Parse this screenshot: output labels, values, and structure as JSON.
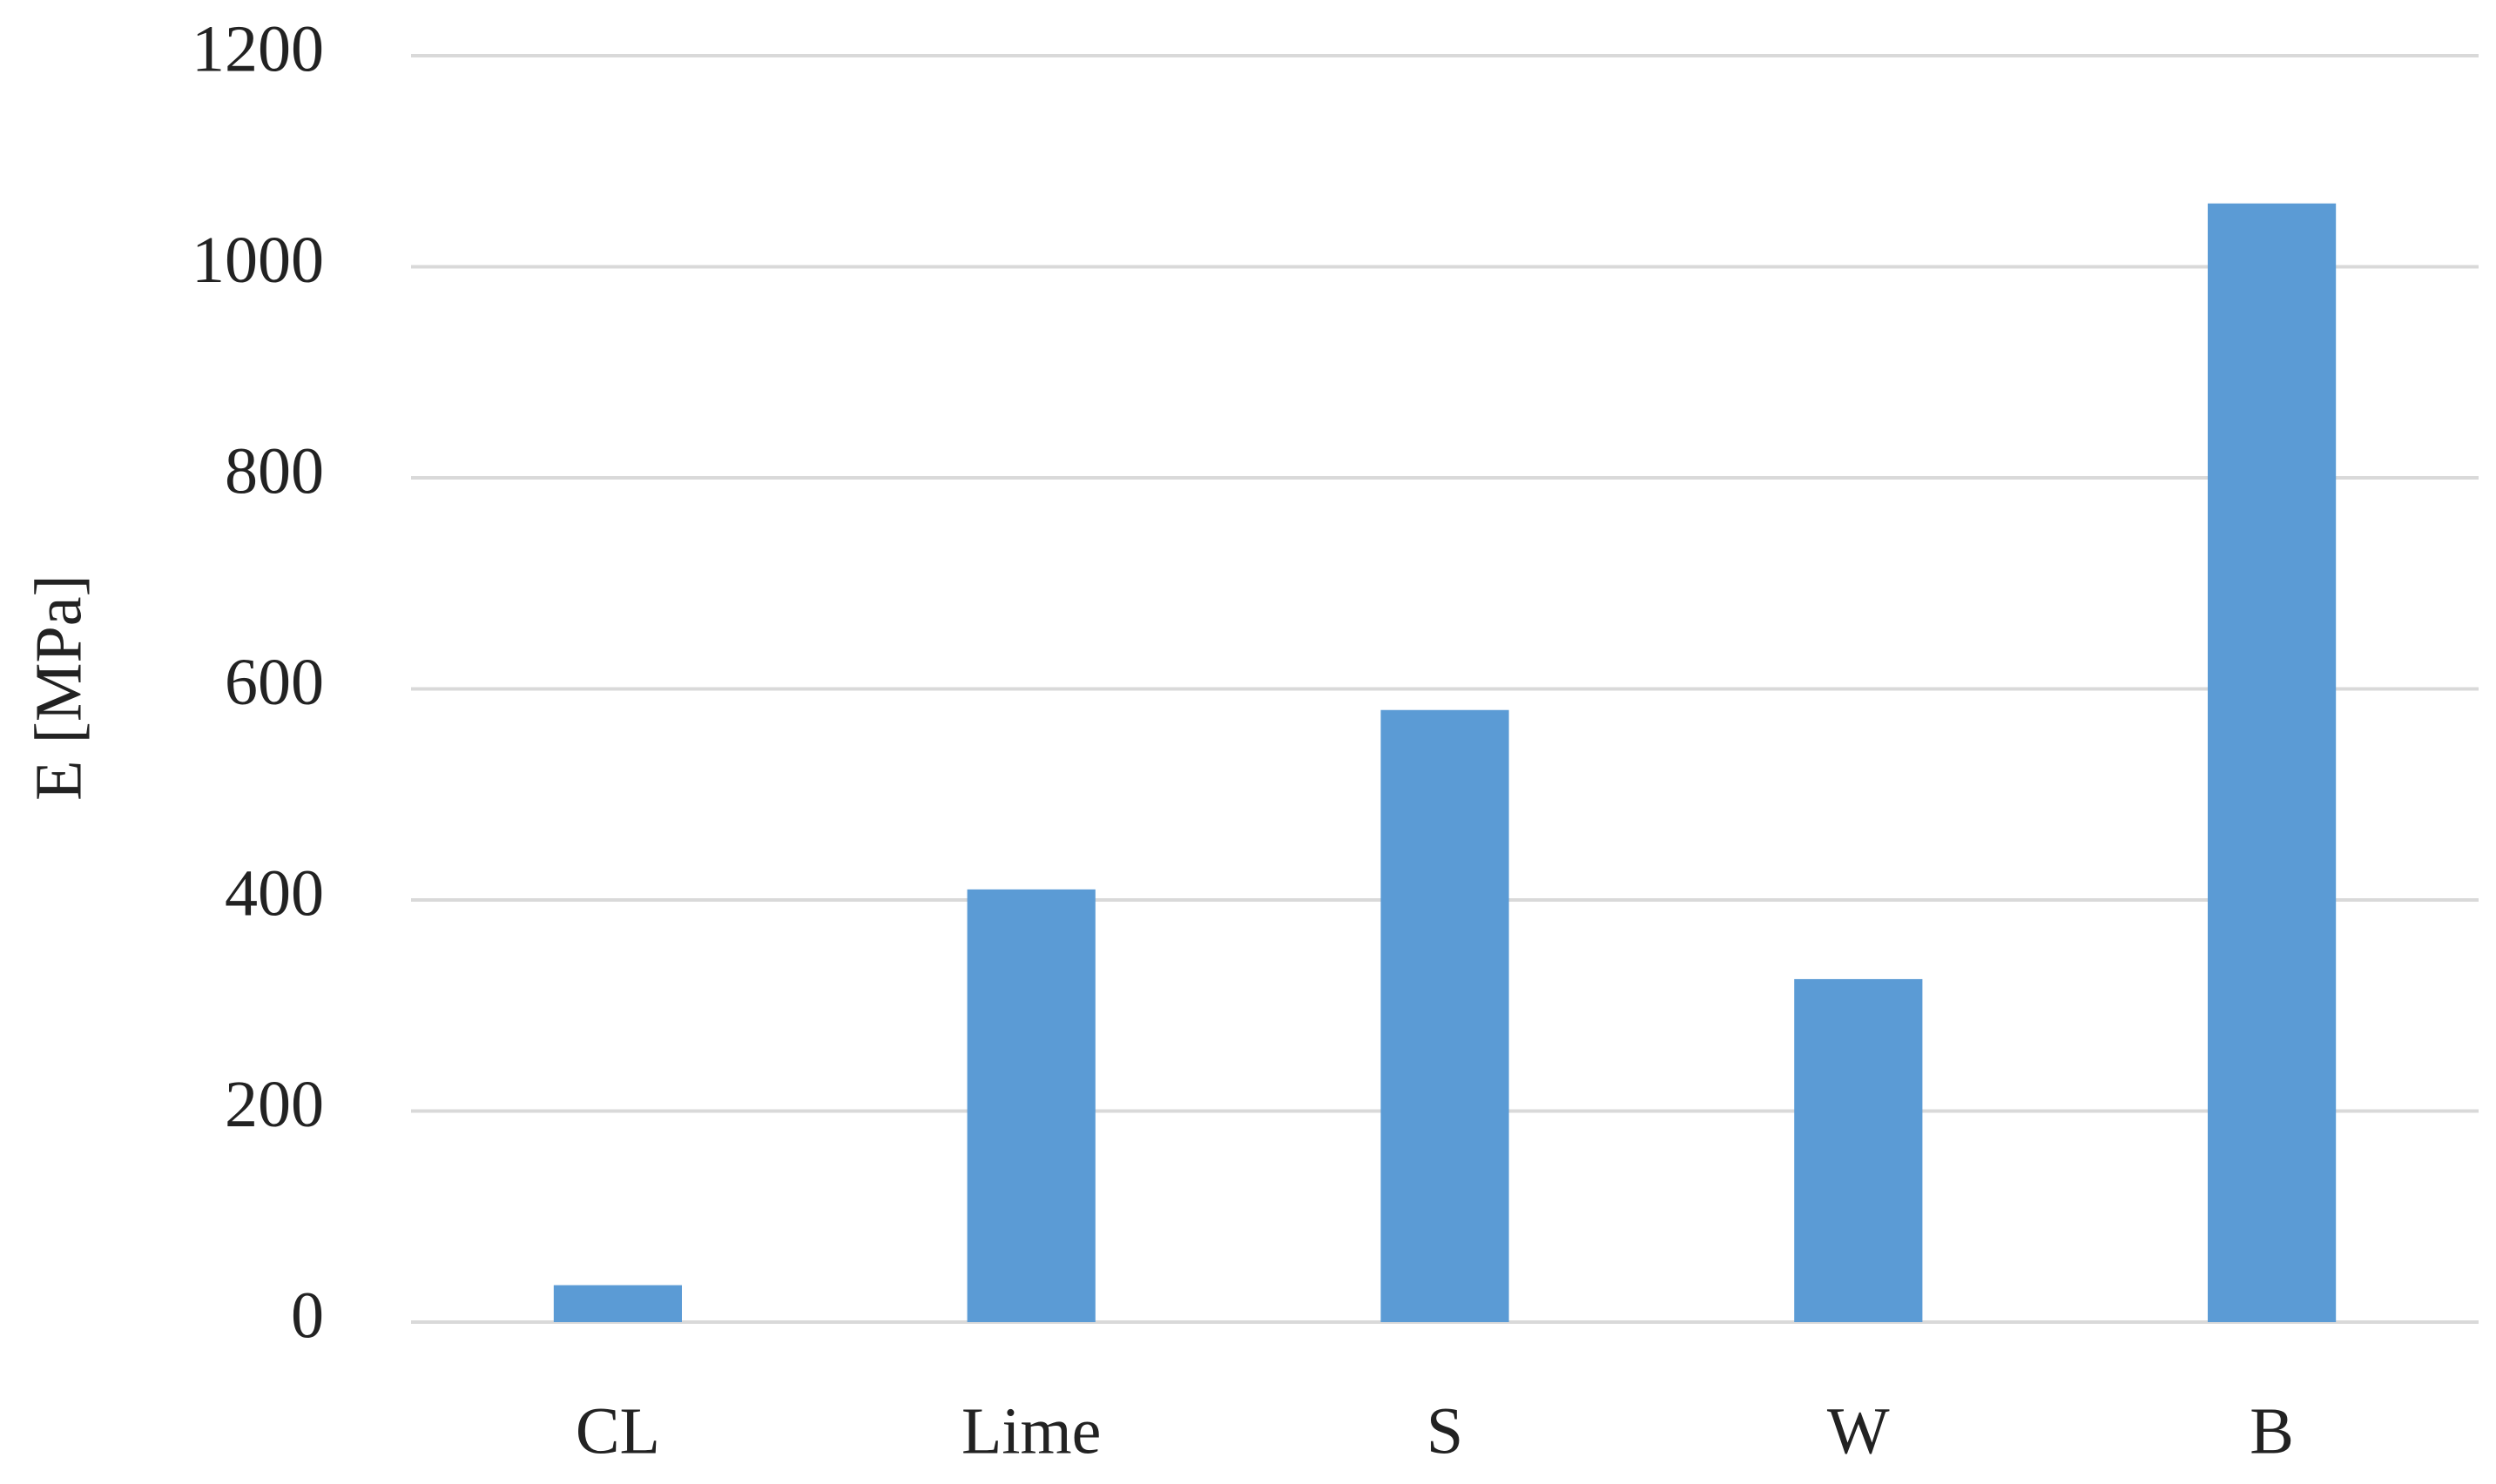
{
  "chart_data": {
    "type": "bar",
    "y_label": "E [MPa]",
    "categories": [
      "CL",
      "Lime",
      "S",
      "W",
      "B"
    ],
    "values": [
      35,
      410,
      580,
      325,
      1060
    ],
    "color": "#5b9bd5",
    "ylim": [
      0,
      1200
    ],
    "yticks": [
      0,
      200,
      400,
      600,
      800,
      1000,
      1200
    ],
    "grid": true
  }
}
